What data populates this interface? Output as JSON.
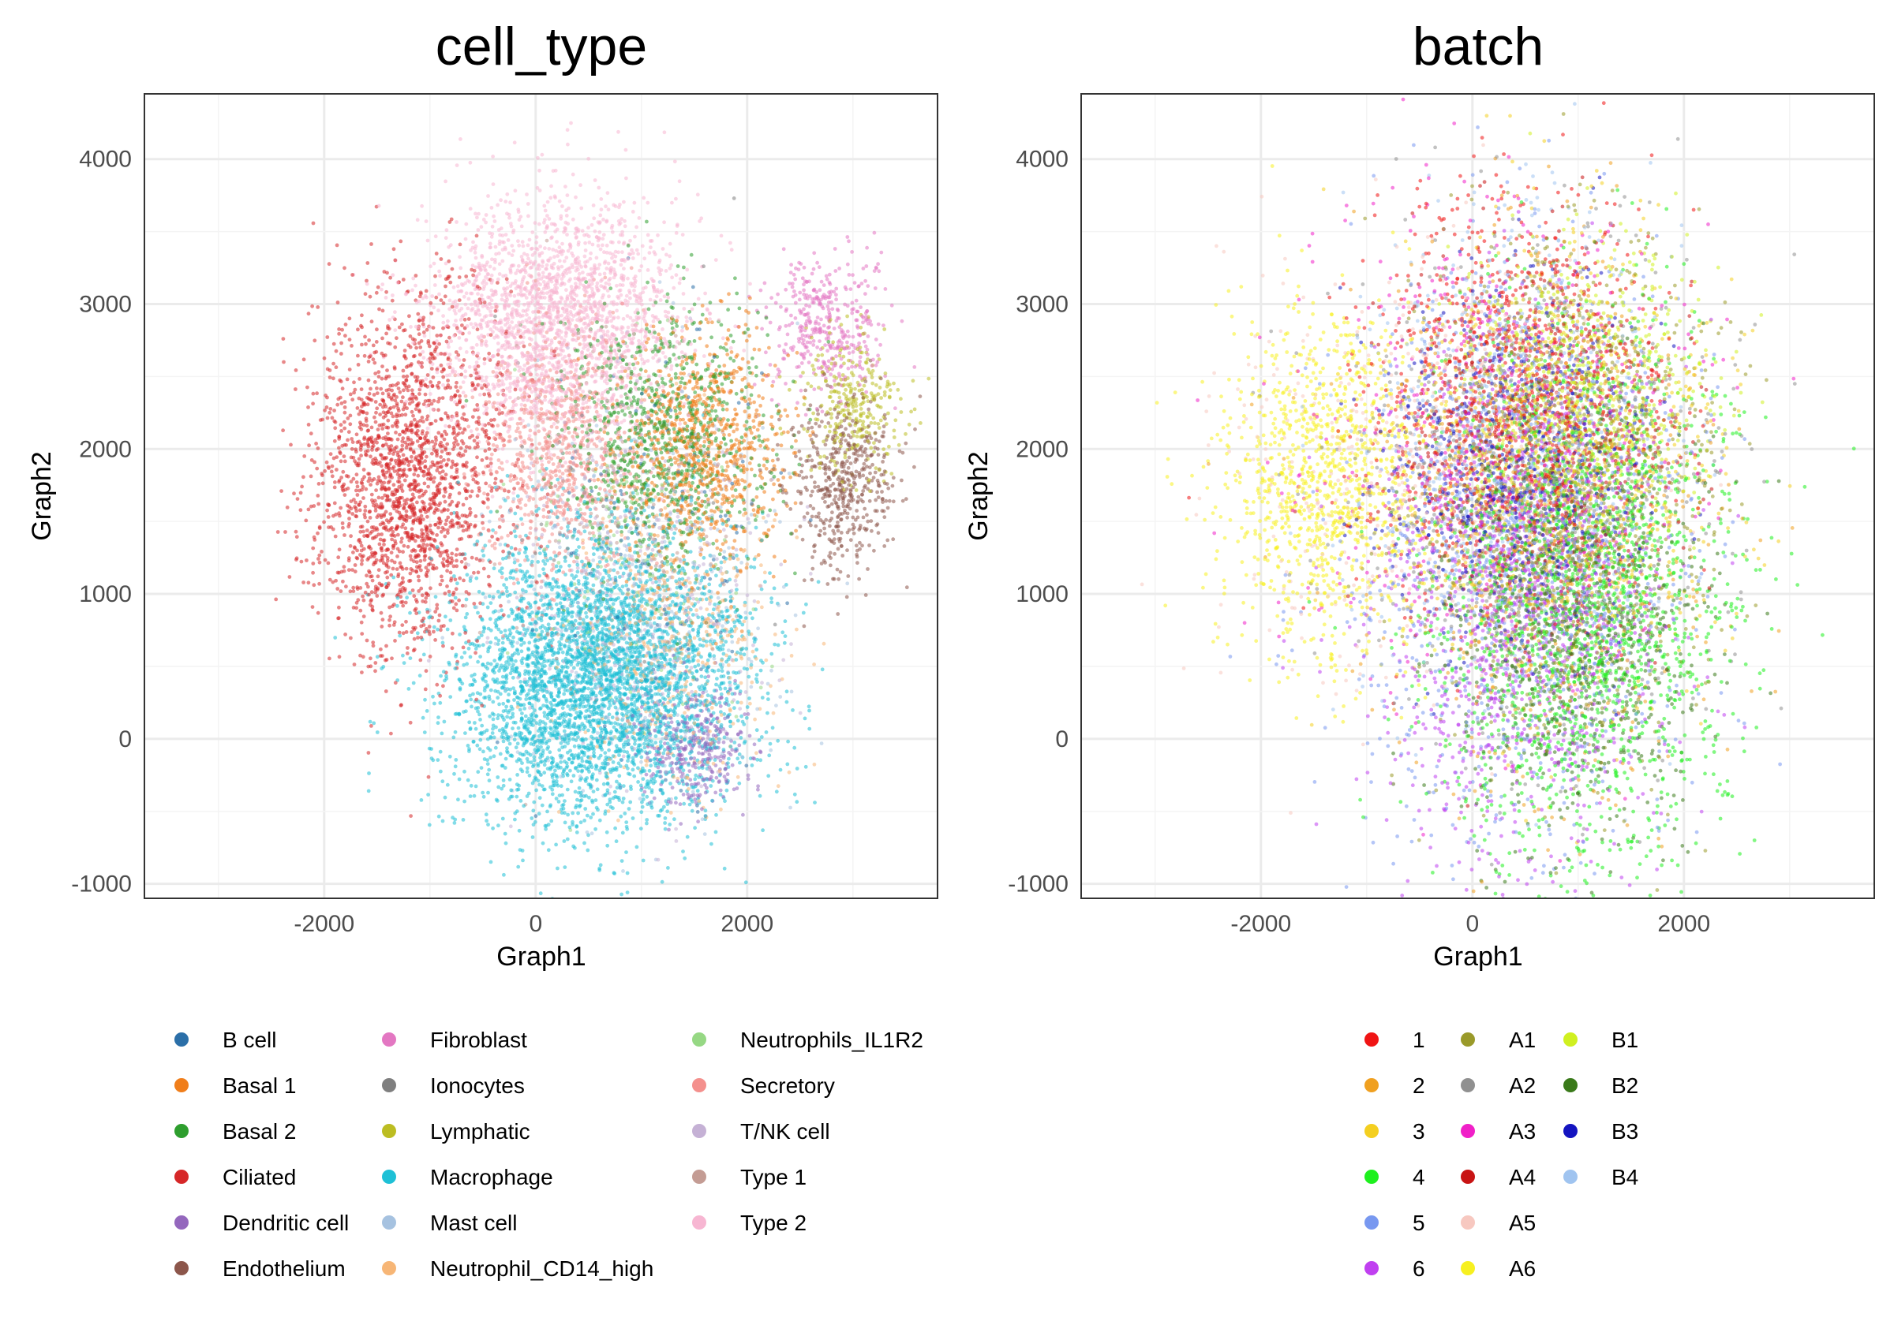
{
  "chart_data": [
    {
      "type": "scatter",
      "title": "cell_type",
      "xlabel": "Graph1",
      "ylabel": "Graph2",
      "xlim": [
        -3700,
        3800
      ],
      "ylim": [
        -1100,
        4450
      ],
      "xticks": [
        -2000,
        0,
        2000
      ],
      "yticks": [
        -1000,
        0,
        1000,
        2000,
        3000,
        4000
      ],
      "grid": true,
      "legend_position": "bottom",
      "point_alpha": 0.55,
      "series": [
        {
          "name": "B cell",
          "color": "#2b6fa8",
          "cluster": {
            "x": [
              1200,
              600
            ],
            "y": [
              1400,
              700
            ],
            "n": 150
          }
        },
        {
          "name": "Basal 1",
          "color": "#f07e1a",
          "cluster": {
            "x": [
              1600,
              400
            ],
            "y": [
              2000,
              400
            ],
            "n": 900
          }
        },
        {
          "name": "Basal 2",
          "color": "#2e9e2e",
          "cluster": {
            "x": [
              1200,
              500
            ],
            "y": [
              2100,
              450
            ],
            "n": 900
          }
        },
        {
          "name": "Ciliated",
          "color": "#d62728",
          "cluster": {
            "x": [
              -1200,
              450
            ],
            "y": [
              1800,
              600
            ],
            "n": 2000
          }
        },
        {
          "name": "Dendritic cell",
          "color": "#9467bd",
          "cluster": {
            "x": [
              1500,
              250
            ],
            "y": [
              -50,
              220
            ],
            "n": 350
          }
        },
        {
          "name": "Endothelium",
          "color": "#8c564b",
          "cluster": {
            "x": [
              2900,
              250
            ],
            "y": [
              1750,
              300
            ],
            "n": 500
          }
        },
        {
          "name": "Fibroblast",
          "color": "#e377c2",
          "cluster": {
            "x": [
              2750,
              280
            ],
            "y": [
              2850,
              250
            ],
            "n": 400
          }
        },
        {
          "name": "Ionocytes",
          "color": "#7f7f7f",
          "cluster": {
            "x": [
              800,
              600
            ],
            "y": [
              1500,
              700
            ],
            "n": 40
          }
        },
        {
          "name": "Lymphatic",
          "color": "#bcbd22",
          "cluster": {
            "x": [
              3000,
              250
            ],
            "y": [
              2300,
              250
            ],
            "n": 300
          }
        },
        {
          "name": "Macrophage",
          "color": "#1ec0d6",
          "cluster": {
            "x": [
              600,
              700
            ],
            "y": [
              400,
              500
            ],
            "n": 4000
          }
        },
        {
          "name": "Mast cell",
          "color": "#a6c2e0",
          "cluster": {
            "x": [
              900,
              700
            ],
            "y": [
              1000,
              700
            ],
            "n": 400
          }
        },
        {
          "name": "Neutrophil_CD14_high",
          "color": "#f7b676",
          "cluster": {
            "x": [
              1300,
              500
            ],
            "y": [
              700,
              500
            ],
            "n": 500
          }
        },
        {
          "name": "Neutrophils_IL1R2",
          "color": "#96d884",
          "cluster": {
            "x": [
              1000,
              500
            ],
            "y": [
              1300,
              600
            ],
            "n": 150
          }
        },
        {
          "name": "Secretory",
          "color": "#f4908d",
          "cluster": {
            "x": [
              200,
              350
            ],
            "y": [
              2000,
              450
            ],
            "n": 800
          }
        },
        {
          "name": "T/NK cell",
          "color": "#c5b1d5",
          "cluster": {
            "x": [
              1000,
              600
            ],
            "y": [
              1000,
              700
            ],
            "n": 400
          }
        },
        {
          "name": "Type 1",
          "color": "#c49c94",
          "cluster": {
            "x": [
              800,
              600
            ],
            "y": [
              1500,
              600
            ],
            "n": 150
          }
        },
        {
          "name": "Type 2",
          "color": "#f7b6d2",
          "cluster": {
            "x": [
              200,
              600
            ],
            "y": [
              2900,
              400
            ],
            "n": 2200
          }
        }
      ]
    },
    {
      "type": "scatter",
      "title": "batch",
      "xlabel": "Graph1",
      "ylabel": "Graph2",
      "xlim": [
        -3700,
        3800
      ],
      "ylim": [
        -1100,
        4450
      ],
      "xticks": [
        -2000,
        0,
        2000
      ],
      "yticks": [
        -1000,
        0,
        1000,
        2000,
        3000,
        4000
      ],
      "grid": true,
      "legend_position": "bottom",
      "point_alpha": 0.55,
      "series": [
        {
          "name": "1",
          "color": "#f01414",
          "cluster": {
            "x": [
              400,
              700
            ],
            "y": [
              2300,
              700
            ],
            "n": 1000
          }
        },
        {
          "name": "2",
          "color": "#f0a020",
          "cluster": {
            "x": [
              700,
              800
            ],
            "y": [
              1500,
              1000
            ],
            "n": 700
          }
        },
        {
          "name": "3",
          "color": "#f4cf20",
          "cluster": {
            "x": [
              800,
              800
            ],
            "y": [
              1800,
              800
            ],
            "n": 800
          }
        },
        {
          "name": "4",
          "color": "#1ef01e",
          "cluster": {
            "x": [
              1100,
              700
            ],
            "y": [
              900,
              900
            ],
            "n": 1800
          }
        },
        {
          "name": "5",
          "color": "#7898f0",
          "cluster": {
            "x": [
              500,
              800
            ],
            "y": [
              1300,
              1000
            ],
            "n": 1200
          }
        },
        {
          "name": "6",
          "color": "#c040f0",
          "cluster": {
            "x": [
              500,
              700
            ],
            "y": [
              900,
              900
            ],
            "n": 1200
          }
        },
        {
          "name": "A1",
          "color": "#9a9a2a",
          "cluster": {
            "x": [
              900,
              700
            ],
            "y": [
              1700,
              900
            ],
            "n": 900
          }
        },
        {
          "name": "A2",
          "color": "#909090",
          "cluster": {
            "x": [
              600,
              900
            ],
            "y": [
              1700,
              900
            ],
            "n": 700
          }
        },
        {
          "name": "A3",
          "color": "#f020c8",
          "cluster": {
            "x": [
              300,
              900
            ],
            "y": [
              2000,
              900
            ],
            "n": 500
          }
        },
        {
          "name": "A4",
          "color": "#c81414",
          "cluster": {
            "x": [
              600,
              700
            ],
            "y": [
              2000,
              700
            ],
            "n": 500
          }
        },
        {
          "name": "A5",
          "color": "#f7c8c0",
          "cluster": {
            "x": [
              -500,
              900
            ],
            "y": [
              1900,
              800
            ],
            "n": 500
          }
        },
        {
          "name": "A6",
          "color": "#f7f020",
          "cluster": {
            "x": [
              -1400,
              500
            ],
            "y": [
              1800,
              600
            ],
            "n": 1100
          }
        },
        {
          "name": "B1",
          "color": "#d0f020",
          "cluster": {
            "x": [
              1000,
              600
            ],
            "y": [
              2400,
              500
            ],
            "n": 700
          }
        },
        {
          "name": "B2",
          "color": "#3a7a1a",
          "cluster": {
            "x": [
              1000,
              600
            ],
            "y": [
              900,
              800
            ],
            "n": 900
          }
        },
        {
          "name": "B3",
          "color": "#1414c0",
          "cluster": {
            "x": [
              400,
              600
            ],
            "y": [
              1800,
              600
            ],
            "n": 700
          }
        },
        {
          "name": "B4",
          "color": "#a0c4f0",
          "cluster": {
            "x": [
              400,
              700
            ],
            "y": [
              2000,
              900
            ],
            "n": 600
          }
        }
      ]
    }
  ]
}
